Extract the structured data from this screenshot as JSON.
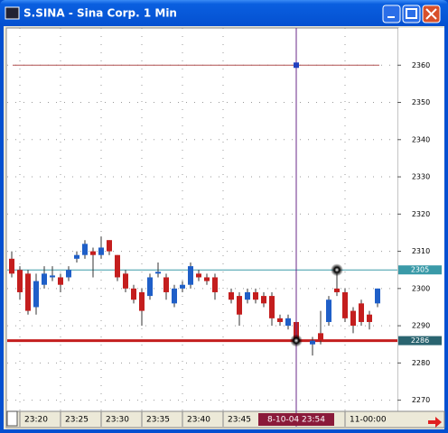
{
  "window": {
    "title": "S.SINA - Sina Corp. 1 Min"
  },
  "chart_data": {
    "type": "candlestick",
    "categories": [
      null,
      "23:20",
      null,
      null,
      null,
      null,
      "23:25",
      null,
      null,
      null,
      null,
      "23:30",
      null,
      null,
      null,
      null,
      "23:35",
      null,
      null,
      null,
      null,
      "23:40",
      null,
      null,
      null,
      null,
      "23:45",
      null,
      null,
      null,
      null,
      null,
      null,
      null,
      null,
      "8-10-04 23:54",
      null,
      null,
      null,
      null,
      null,
      "11-00:00",
      null,
      null,
      null,
      null
    ],
    "open": [
      2308,
      2305,
      2304,
      2295,
      2301,
      2303,
      2303,
      2303,
      2308,
      2309,
      2310,
      2309,
      2313,
      2309,
      2304,
      2300,
      2299,
      2298,
      2304,
      2303,
      2296,
      2300,
      2301,
      2304,
      2303,
      2303,
      null,
      2299,
      2298,
      2297,
      2299,
      2298,
      2298,
      2292,
      2290,
      2291,
      null,
      2285,
      2288,
      2291,
      2300,
      2299,
      2294,
      2296,
      2293,
      2296
    ],
    "high": [
      2310,
      2306,
      2305,
      2304,
      2306,
      2306,
      2304,
      2306,
      2310,
      2313,
      2311,
      2314,
      2313,
      2309,
      2305,
      2301,
      2300,
      2304,
      2307,
      2304,
      2301,
      2302,
      2307,
      2305,
      2304,
      2304,
      null,
      2300,
      2299,
      2300,
      2300,
      2299,
      2299,
      2293,
      2293,
      2292,
      null,
      2287,
      2294,
      2298,
      2304,
      2300,
      2295,
      2297,
      2294,
      2300
    ],
    "low": [
      2303,
      2297,
      2293,
      2293,
      2300,
      2302,
      2299,
      2302,
      2307,
      2308,
      2303,
      2308,
      2309,
      2302,
      2299,
      2296,
      2290,
      2297,
      2303,
      2297,
      2295,
      2299,
      2300,
      2302,
      2301,
      2297,
      null,
      2296,
      2290,
      2296,
      2296,
      2295,
      2290,
      2290,
      2289,
      2284,
      null,
      2282,
      2285,
      2290,
      2298,
      2291,
      2288,
      2290,
      2289,
      2295
    ],
    "close": [
      2304,
      2299,
      2294,
      2302,
      2304,
      2303.5,
      2301,
      2305,
      2309,
      2312,
      2309,
      2311,
      2310,
      2303,
      2300,
      2297,
      2294,
      2303,
      2304.5,
      2299,
      2300,
      2301,
      2306,
      2303,
      2302,
      2299,
      null,
      2297,
      2293,
      2299,
      2297,
      2296,
      2292,
      2291,
      2292,
      2286,
      null,
      2286,
      2286,
      2297,
      2299,
      2292,
      2290,
      2291,
      2291,
      2300
    ],
    "up_color": "#1f5fc8",
    "down_color": "#c41e1e",
    "ylim": [
      2267,
      2370
    ],
    "yticks": [
      2270,
      2280,
      2290,
      2300,
      2310,
      2320,
      2330,
      2340,
      2350,
      2360
    ],
    "grid": true,
    "hlines": [
      {
        "value": 2360,
        "color": "#b05050"
      },
      {
        "value": 2305,
        "label": "2305",
        "color": "#3a9aa8"
      },
      {
        "value": 2286,
        "label": "2286",
        "color": "#c41e1e"
      }
    ],
    "crosshair": {
      "index": 35,
      "y": 2360
    },
    "markers": [
      {
        "index": 35,
        "value": 2286,
        "color": "#e02020"
      },
      {
        "index": 40,
        "value": 2305,
        "color": "#2030c0"
      }
    ]
  }
}
